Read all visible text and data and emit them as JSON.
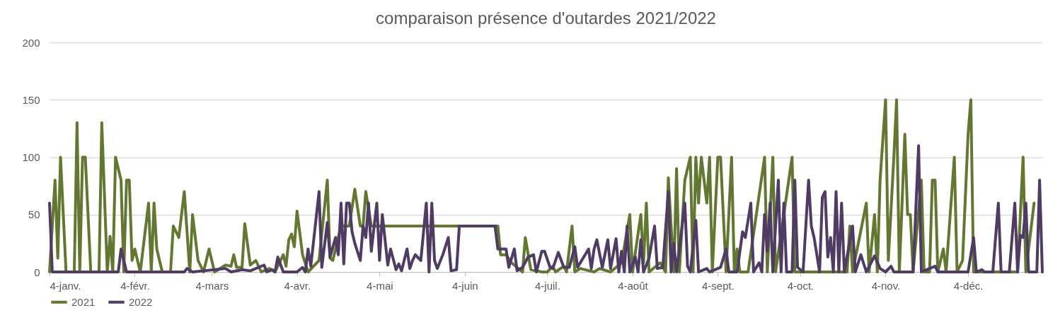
{
  "chart_data": {
    "type": "line",
    "title": "comparaison présence d'outardes 2021/2022",
    "xlim": [
      "--01-04",
      "--12-31"
    ],
    "xticks": [
      {
        "value": "--01-04",
        "label": "4-janv."
      },
      {
        "value": "--02-04",
        "label": "4-févr."
      },
      {
        "value": "--03-04",
        "label": "4-mars"
      },
      {
        "value": "--04-04",
        "label": "4-avr."
      },
      {
        "value": "--05-04",
        "label": "4-mai"
      },
      {
        "value": "--06-04",
        "label": "4-juin"
      },
      {
        "value": "--07-04",
        "label": "4-juil."
      },
      {
        "value": "--08-04",
        "label": "4-août"
      },
      {
        "value": "--09-04",
        "label": "4-sept."
      },
      {
        "value": "--10-04",
        "label": "4-oct."
      },
      {
        "value": "--11-04",
        "label": "4-nov."
      },
      {
        "value": "--12-04",
        "label": "4-déc."
      }
    ],
    "ylim": [
      0,
      200
    ],
    "yticks": [
      0,
      50,
      100,
      150,
      200
    ],
    "grid": "y",
    "legend": "bottom",
    "series": [
      {
        "name": "2021",
        "color": "#627732",
        "x": [
          "--01-04",
          "--01-06",
          "--01-07",
          "--01-08",
          "--01-10",
          "--01-13",
          "--01-14",
          "--01-15",
          "--01-16",
          "--01-17",
          "--01-19",
          "--01-22",
          "--01-23",
          "--01-25",
          "--01-26",
          "--01-27",
          "--01-28",
          "--01-30",
          "--01-31",
          "--02-01",
          "--02-02",
          "--02-03",
          "--02-04",
          "--02-06",
          "--02-09",
          "--02-10",
          "--02-11",
          "--02-12",
          "--02-14",
          "--02-17",
          "--02-18",
          "--02-20",
          "--02-22",
          "--02-24",
          "--02-25",
          "--02-27",
          "--03-01",
          "--03-03",
          "--03-05",
          "--03-09",
          "--03-11",
          "--03-12",
          "--03-13",
          "--03-15",
          "--03-16",
          "--03-18",
          "--03-20",
          "--03-22",
          "--03-25",
          "--03-27",
          "--03-30",
          "--03-31",
          "--04-01",
          "--04-02",
          "--04-03",
          "--04-04",
          "--04-06",
          "--04-08",
          "--04-10",
          "--04-12",
          "--04-15",
          "--04-16",
          "--04-17",
          "--04-19",
          "--04-20",
          "--04-23",
          "--04-25",
          "--04-27",
          "--04-28",
          "--04-29",
          "--05-01",
          "--06-16",
          "--06-17",
          "--06-19",
          "--06-21",
          "--06-25",
          "--06-26",
          "--06-28",
          "--07-02",
          "--07-04",
          "--07-06",
          "--07-07",
          "--07-10",
          "--07-11",
          "--07-13",
          "--07-14",
          "--07-16",
          "--07-21",
          "--07-23",
          "--07-27",
          "--07-31",
          "--08-03",
          "--08-04",
          "--08-07",
          "--08-08",
          "--08-09",
          "--08-10",
          "--08-14",
          "--08-16",
          "--08-17",
          "--08-19",
          "--08-20",
          "--08-21",
          "--08-23",
          "--08-25",
          "--08-26",
          "--08-27",
          "--08-28",
          "--08-29",
          "--08-31",
          "--09-01",
          "--09-02",
          "--09-04",
          "--09-05",
          "--09-07",
          "--09-09",
          "--09-10",
          "--09-11",
          "--09-12",
          "--09-15",
          "--09-21",
          "--09-22",
          "--09-24",
          "--09-25",
          "--10-01",
          "--10-02",
          "--10-21",
          "--10-22",
          "--10-23",
          "--10-28",
          "--10-29",
          "--10-31",
          "--11-01",
          "--11-02",
          "--11-04",
          "--11-05",
          "--11-07",
          "--11-08",
          "--11-09",
          "--11-11",
          "--11-12",
          "--11-13",
          "--11-14",
          "--11-17",
          "--11-18",
          "--11-20",
          "--11-21",
          "--11-22",
          "--11-23",
          "--11-25",
          "--11-26",
          "--11-29",
          "--11-30",
          "--12-02",
          "--12-04",
          "--12-05",
          "--12-06",
          "--12-22",
          "--12-24",
          "--12-25",
          "--12-28"
        ],
        "values": [
          0,
          80,
          12,
          100,
          0,
          0,
          130,
          0,
          100,
          100,
          0,
          0,
          130,
          0,
          31,
          0,
          100,
          80,
          0,
          80,
          80,
          10,
          20,
          0,
          60,
          0,
          60,
          20,
          0,
          0,
          40,
          30,
          70,
          0,
          50,
          10,
          0,
          20,
          0,
          6,
          5,
          15,
          4,
          4,
          42,
          6,
          10,
          0,
          3,
          0,
          15,
          5,
          28,
          33,
          22,
          53,
          15,
          0,
          5,
          10,
          80,
          12,
          10,
          30,
          40,
          40,
          72,
          40,
          40,
          70,
          40,
          40,
          15,
          15,
          8,
          0,
          30,
          2,
          0,
          0,
          5,
          0,
          5,
          0,
          40,
          0,
          3,
          0,
          3,
          0,
          8,
          50,
          0,
          50,
          8,
          60,
          0,
          8,
          0,
          82,
          0,
          90,
          0,
          80,
          100,
          0,
          100,
          60,
          100,
          60,
          100,
          0,
          100,
          100,
          0,
          100,
          0,
          20,
          0,
          0,
          100,
          0,
          100,
          0,
          100,
          0,
          0,
          40,
          0,
          60,
          0,
          50,
          0,
          80,
          150,
          10,
          100,
          150,
          0,
          120,
          50,
          50,
          0,
          80,
          0,
          0,
          80,
          80,
          0,
          20,
          0,
          100,
          0,
          10,
          120,
          150,
          0,
          0,
          100,
          0,
          60
        ]
      },
      {
        "name": "2022",
        "color": "#4f3b64",
        "x": [
          "--01-04",
          "--01-05",
          "--01-29",
          "--01-30",
          "--02-01",
          "--02-22",
          "--02-23",
          "--02-25",
          "--03-09",
          "--03-11",
          "--03-15",
          "--03-18",
          "--03-23",
          "--03-24",
          "--03-26",
          "--03-27",
          "--03-28",
          "--03-30",
          "--04-04",
          "--04-06",
          "--04-07",
          "--04-08",
          "--04-09",
          "--04-12",
          "--04-13",
          "--04-15",
          "--04-16",
          "--04-18",
          "--04-19",
          "--04-20",
          "--04-21",
          "--04-22",
          "--04-23",
          "--04-24",
          "--04-25",
          "--04-27",
          "--04-28",
          "--04-29",
          "--04-30",
          "--05-01",
          "--05-03",
          "--05-04",
          "--05-05",
          "--05-07",
          "--05-08",
          "--05-10",
          "--05-11",
          "--05-12",
          "--05-14",
          "--05-15",
          "--05-16",
          "--05-17",
          "--05-19",
          "--05-21",
          "--05-22",
          "--05-23",
          "--05-24",
          "--05-25",
          "--05-27",
          "--05-29",
          "--05-30",
          "--06-01",
          "--06-02",
          "--06-15",
          "--06-16",
          "--06-19",
          "--06-20",
          "--06-22",
          "--06-23",
          "--06-25",
          "--06-27",
          "--06-29",
          "--06-30",
          "--07-02",
          "--07-03",
          "--07-05",
          "--07-06",
          "--07-08",
          "--07-10",
          "--07-12",
          "--07-14",
          "--07-15",
          "--07-19",
          "--07-20",
          "--07-21",
          "--07-22",
          "--07-24",
          "--07-26",
          "--07-27",
          "--07-29",
          "--07-30",
          "--07-31",
          "--08-01",
          "--08-02",
          "--08-03",
          "--08-05",
          "--08-06",
          "--08-07",
          "--08-08",
          "--08-10",
          "--08-12",
          "--08-13",
          "--08-15",
          "--08-17",
          "--08-18",
          "--08-19",
          "--08-20",
          "--08-23",
          "--08-24",
          "--08-25",
          "--08-27",
          "--08-28",
          "--08-31",
          "--09-01",
          "--09-04",
          "--09-05",
          "--09-07",
          "--09-08",
          "--09-11",
          "--09-13",
          "--09-14",
          "--09-16",
          "--09-17",
          "--09-19",
          "--09-20",
          "--09-21",
          "--09-22",
          "--09-23",
          "--09-24",
          "--09-26",
          "--09-27",
          "--09-28",
          "--09-29",
          "--10-01",
          "--10-02",
          "--10-03",
          "--10-05",
          "--10-07",
          "--10-08",
          "--10-09",
          "--10-11",
          "--10-12",
          "--10-13",
          "--10-14",
          "--10-15",
          "--10-16",
          "--10-17",
          "--10-18",
          "--10-19",
          "--10-20",
          "--10-23",
          "--10-24",
          "--10-26",
          "--10-28",
          "--10-31",
          "--11-02",
          "--11-04",
          "--11-06",
          "--11-07",
          "--11-14",
          "--11-16",
          "--11-17",
          "--11-22",
          "--11-23",
          "--12-04",
          "--12-06",
          "--12-07",
          "--12-09",
          "--12-10",
          "--12-13",
          "--12-15",
          "--12-16",
          "--12-19",
          "--12-21",
          "--12-22",
          "--12-23",
          "--12-24",
          "--12-25",
          "--12-26",
          "--12-29",
          "--12-30",
          "--12-31"
        ],
        "values": [
          60,
          0,
          0,
          20,
          0,
          0,
          3,
          0,
          3,
          0,
          2,
          1,
          6,
          0,
          2,
          0,
          13,
          0,
          0,
          4,
          0,
          20,
          5,
          70,
          4,
          43,
          13,
          30,
          15,
          60,
          7,
          60,
          60,
          35,
          25,
          10,
          40,
          30,
          60,
          18,
          60,
          10,
          50,
          6,
          20,
          2,
          7,
          1,
          20,
          3,
          10,
          15,
          10,
          60,
          0,
          60,
          10,
          3,
          15,
          30,
          1,
          2,
          40,
          40,
          20,
          20,
          4,
          20,
          1,
          4,
          13,
          15,
          0,
          18,
          18,
          4,
          3,
          17,
          4,
          4,
          22,
          4,
          20,
          3,
          20,
          28,
          4,
          28,
          3,
          29,
          0,
          18,
          0,
          40,
          0,
          13,
          0,
          28,
          0,
          12,
          40,
          3,
          4,
          70,
          0,
          25,
          0,
          60,
          5,
          0,
          45,
          0,
          3,
          0,
          3,
          4,
          20,
          0,
          0,
          35,
          30,
          60,
          0,
          8,
          0,
          50,
          18,
          60,
          0,
          80,
          0,
          60,
          0,
          0,
          80,
          4,
          0,
          80,
          40,
          30,
          0,
          65,
          70,
          13,
          30,
          0,
          70,
          0,
          60,
          0,
          40,
          0,
          15,
          0,
          14,
          3,
          0,
          5,
          0,
          0,
          110,
          0,
          5,
          0,
          0,
          30,
          0,
          2,
          0,
          0,
          60,
          0,
          0,
          60,
          0,
          32,
          30,
          60,
          0,
          0,
          80,
          0
        ]
      }
    ]
  }
}
